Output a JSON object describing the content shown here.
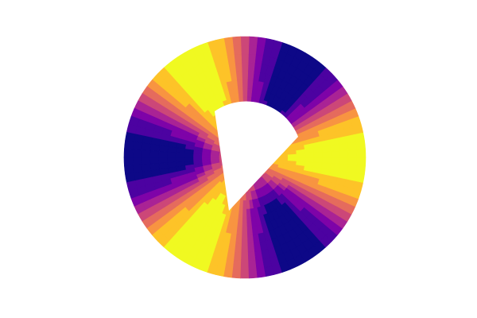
{
  "chart_data": {
    "type": "polar-contour",
    "colormap": "plasma",
    "colors": [
      "#0d0887",
      "#4c02a1",
      "#7e03a8",
      "#a92395",
      "#cc4778",
      "#e56b5d",
      "#f89441",
      "#fdc328",
      "#f0f921"
    ]
  }
}
